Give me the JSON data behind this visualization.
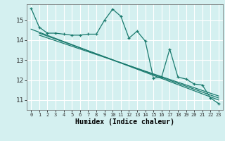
{
  "xlabel": "Humidex (Indice chaleur)",
  "bg_color": "#d4f0f0",
  "grid_color": "#ffffff",
  "line_color": "#1a7a6e",
  "xlim": [
    -0.5,
    23.5
  ],
  "ylim": [
    10.5,
    15.8
  ],
  "yticks": [
    11,
    12,
    13,
    14,
    15
  ],
  "xticks": [
    0,
    1,
    2,
    3,
    4,
    5,
    6,
    7,
    8,
    9,
    10,
    11,
    12,
    13,
    14,
    15,
    16,
    17,
    18,
    19,
    20,
    21,
    22,
    23
  ],
  "main_series": [
    15.6,
    14.65,
    14.35,
    14.35,
    14.3,
    14.25,
    14.25,
    14.3,
    14.3,
    15.0,
    15.55,
    15.2,
    14.1,
    14.45,
    13.95,
    12.1,
    12.15,
    13.55,
    12.15,
    12.05,
    11.8,
    11.75,
    11.1,
    10.82
  ],
  "trend1_x": [
    0,
    23
  ],
  "trend1_y": [
    14.55,
    11.0
  ],
  "trend2_x": [
    1,
    23
  ],
  "trend2_y": [
    14.35,
    11.1
  ],
  "trend3_x": [
    1,
    23
  ],
  "trend3_y": [
    14.25,
    11.2
  ]
}
